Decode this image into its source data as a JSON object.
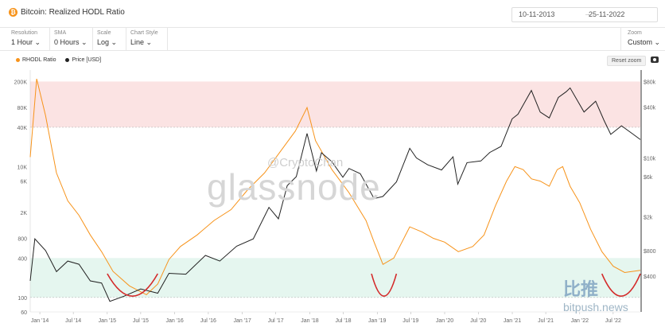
{
  "header": {
    "title": "Bitcoin: Realized HODL Ratio",
    "date_from": "10-11-2013",
    "date_to": "25-11-2022"
  },
  "controls": [
    {
      "label": "Resolution",
      "value": "1 Hour"
    },
    {
      "label": "SMA",
      "value": "0 Hours"
    },
    {
      "label": "Scale",
      "value": "Log"
    },
    {
      "label": "Chart Style",
      "value": "Line"
    }
  ],
  "zoom": {
    "label": "Zoom",
    "value": "Custom"
  },
  "reset_zoom": "Reset zoom",
  "watermark": {
    "brand": "glassnode",
    "handle": "@CryptoChan",
    "site_cn": "比推",
    "site": "bitpush.news"
  },
  "colors": {
    "rhodl": "#f7931a",
    "price": "#222222",
    "red_band": "#fbe3e3",
    "green_band": "#e5f6ef",
    "annotation": "#d42a2a"
  },
  "chart_data": {
    "type": "line",
    "x_ticks": [
      "Jan '14",
      "Jul '14",
      "Jan '15",
      "Jul '15",
      "Jan '16",
      "Jul '16",
      "Jan '17",
      "Jul '17",
      "Jan '18",
      "Jul '18",
      "Jan '19",
      "Jul '19",
      "Jan '20",
      "Jul '20",
      "Jan '21",
      "Jul '21",
      "Jan '22",
      "Jul '22"
    ],
    "left_axis": {
      "scale": "log",
      "ticks": [
        "200K",
        "80K",
        "40K",
        "10K",
        "6K",
        "2K",
        "800",
        "400",
        "100",
        "60"
      ],
      "range": [
        60,
        300000
      ]
    },
    "right_axis": {
      "scale": "log",
      "ticks": [
        "$80k",
        "$40k",
        "$10k",
        "$6k",
        "$2k",
        "$800",
        "$400"
      ],
      "range": [
        150,
        110000
      ]
    },
    "bands": [
      {
        "name": "upper",
        "from": 40000,
        "to": 200000
      },
      {
        "name": "lower",
        "from": 100,
        "to": 400
      }
    ],
    "series": [
      {
        "name": "RHODL Ratio",
        "axis": "left",
        "x": [
          "2013-11-10",
          "2013-12-15",
          "2014-02-01",
          "2014-04-01",
          "2014-06-01",
          "2014-08-01",
          "2014-10-01",
          "2014-12-01",
          "2015-02-01",
          "2015-05-01",
          "2015-08-01",
          "2015-10-01",
          "2015-12-01",
          "2016-02-01",
          "2016-05-01",
          "2016-08-01",
          "2016-11-01",
          "2017-02-01",
          "2017-05-01",
          "2017-08-01",
          "2017-10-15",
          "2017-12-17",
          "2018-02-01",
          "2018-05-01",
          "2018-08-01",
          "2018-11-01",
          "2018-12-15",
          "2019-02-01",
          "2019-04-01",
          "2019-06-26",
          "2019-09-01",
          "2019-11-01",
          "2020-01-01",
          "2020-03-15",
          "2020-06-01",
          "2020-08-01",
          "2020-10-01",
          "2020-12-01",
          "2021-01-15",
          "2021-03-01",
          "2021-04-15",
          "2021-06-01",
          "2021-07-20",
          "2021-09-01",
          "2021-10-01",
          "2021-11-10",
          "2022-01-01",
          "2022-03-01",
          "2022-05-01",
          "2022-07-01",
          "2022-09-01",
          "2022-11-25"
        ],
        "values": [
          14000,
          220000,
          60000,
          8000,
          3000,
          1800,
          900,
          500,
          250,
          150,
          110,
          160,
          380,
          600,
          900,
          1500,
          2200,
          4500,
          8000,
          18000,
          35000,
          80000,
          25000,
          9000,
          4000,
          1500,
          700,
          320,
          400,
          1200,
          1000,
          800,
          700,
          500,
          600,
          900,
          2500,
          6000,
          10000,
          9000,
          6500,
          6000,
          5000,
          9000,
          10000,
          5000,
          2800,
          1100,
          500,
          300,
          240,
          260
        ]
      },
      {
        "name": "Price [USD]",
        "axis": "right",
        "x": [
          "2013-11-10",
          "2013-12-05",
          "2014-02-01",
          "2014-04-01",
          "2014-06-01",
          "2014-08-01",
          "2014-10-01",
          "2014-12-01",
          "2015-01-15",
          "2015-04-01",
          "2015-07-01",
          "2015-10-01",
          "2015-12-01",
          "2016-03-01",
          "2016-06-15",
          "2016-09-01",
          "2016-12-01",
          "2017-03-01",
          "2017-05-25",
          "2017-07-15",
          "2017-09-01",
          "2017-10-20",
          "2017-12-17",
          "2018-02-06",
          "2018-03-05",
          "2018-05-01",
          "2018-06-29",
          "2018-08-01",
          "2018-10-01",
          "2018-12-15",
          "2019-02-01",
          "2019-04-15",
          "2019-06-26",
          "2019-08-01",
          "2019-10-01",
          "2019-12-15",
          "2020-02-15",
          "2020-03-12",
          "2020-05-01",
          "2020-07-15",
          "2020-09-01",
          "2020-11-01",
          "2020-12-31",
          "2021-02-01",
          "2021-04-14",
          "2021-06-01",
          "2021-07-20",
          "2021-09-07",
          "2021-10-20",
          "2021-11-10",
          "2022-01-24",
          "2022-03-28",
          "2022-05-12",
          "2022-06-18",
          "2022-08-15",
          "2022-10-15",
          "2022-11-25"
        ],
        "values": [
          350,
          1100,
          800,
          450,
          600,
          550,
          350,
          330,
          200,
          230,
          280,
          250,
          430,
          420,
          700,
          600,
          900,
          1100,
          2600,
          1900,
          4700,
          6000,
          19500,
          7000,
          11500,
          9000,
          5900,
          7500,
          6500,
          3300,
          3500,
          5200,
          13000,
          10000,
          8300,
          7200,
          10300,
          4900,
          8800,
          9200,
          11600,
          13700,
          29000,
          33000,
          63000,
          35000,
          29800,
          52000,
          61000,
          67500,
          35000,
          47000,
          28000,
          19000,
          24000,
          19200,
          16500
        ]
      }
    ],
    "annotations": [
      {
        "type": "red-curve",
        "from": "2015-01-01",
        "to": "2015-10-01"
      },
      {
        "type": "red-curve",
        "from": "2018-12-01",
        "to": "2019-04-15"
      },
      {
        "type": "red-curve",
        "from": "2022-05-01",
        "to": "2022-11-25"
      }
    ]
  }
}
